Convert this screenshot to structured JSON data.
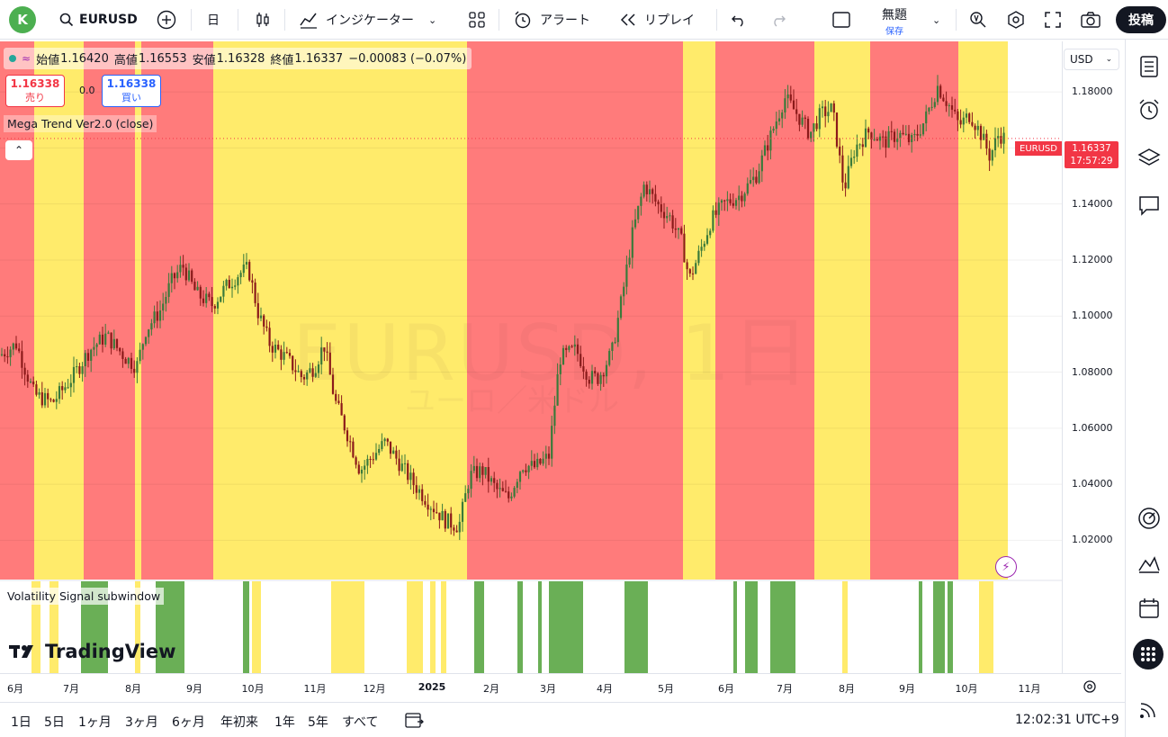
{
  "toolbar": {
    "avatar_letter": "K",
    "symbol": "EURUSD",
    "interval": "日",
    "indicators_label": "インジケーター",
    "alert_label": "アラート",
    "replay_label": "リプレイ",
    "layout_name": "無題",
    "layout_saved": "保存",
    "publish_label": "投稿"
  },
  "legend": {
    "open_label": "始値",
    "open_value": "1.16420",
    "high_label": "高値",
    "high_value": "1.16553",
    "low_label": "安値",
    "low_value": "1.16328",
    "close_label": "終値",
    "close_value": "1.16337",
    "change": "−0.00083 (−0.07%)",
    "sell_price": "1.16338",
    "sell_label": "売り",
    "buy_price": "1.16338",
    "buy_label": "買い",
    "spread": "0.0"
  },
  "indicator_label": "Mega Trend Ver2.0 (close)",
  "subwindow_label": "Volatility Signal subwindow",
  "watermark": {
    "symbol": "EURUSD, 1日",
    "description": "ユーロ／米ドル"
  },
  "tv_logo_text": "TradingView",
  "price_axis": {
    "currency": "USD",
    "ticks": [
      "1.18000",
      "1.16000",
      "1.14000",
      "1.12000",
      "1.10000",
      "1.08000",
      "1.06000",
      "1.04000",
      "1.02000"
    ],
    "last_symbol": "EURUSD",
    "last_price": "1.16337",
    "countdown": "17:57:29"
  },
  "time_axis": [
    "6月",
    "7月",
    "8月",
    "9月",
    "10月",
    "11月",
    "12月",
    "2025",
    "2月",
    "3月",
    "4月",
    "5月",
    "6月",
    "7月",
    "8月",
    "9月",
    "10月",
    "11月"
  ],
  "ranges": [
    "1日",
    "5日",
    "1ヶ月",
    "3ヶ月",
    "6ヶ月",
    "年初来",
    "1年",
    "5年",
    "すべて"
  ],
  "clock": "12:02:31 UTC+9",
  "colors": {
    "red_zone": "#ff7b7b",
    "yellow_zone": "#ffeb6b",
    "green_signal": "#6aaf56",
    "yellow_signal": "#ffeb6b",
    "candle_up": "#3a7a3a",
    "candle_down": "#8b1a1a",
    "alert_red": "#f23645"
  },
  "chart_data": {
    "type": "candlestick",
    "price_range": [
      1.006,
      1.198
    ],
    "price_points": [
      [
        0,
        1.086
      ],
      [
        18,
        1.09
      ],
      [
        38,
        1.072
      ],
      [
        58,
        1.069
      ],
      [
        80,
        1.078
      ],
      [
        100,
        1.088
      ],
      [
        118,
        1.093
      ],
      [
        140,
        1.085
      ],
      [
        152,
        1.082
      ],
      [
        162,
        1.095
      ],
      [
        178,
        1.102
      ],
      [
        190,
        1.112
      ],
      [
        203,
        1.118
      ],
      [
        218,
        1.108
      ],
      [
        236,
        1.104
      ],
      [
        250,
        1.11
      ],
      [
        265,
        1.115
      ],
      [
        276,
        1.117
      ],
      [
        287,
        1.101
      ],
      [
        300,
        1.09
      ],
      [
        318,
        1.085
      ],
      [
        336,
        1.078
      ],
      [
        350,
        1.082
      ],
      [
        360,
        1.09
      ],
      [
        372,
        1.07
      ],
      [
        386,
        1.058
      ],
      [
        400,
        1.045
      ],
      [
        414,
        1.05
      ],
      [
        428,
        1.055
      ],
      [
        445,
        1.047
      ],
      [
        460,
        1.04
      ],
      [
        478,
        1.033
      ],
      [
        495,
        1.027
      ],
      [
        510,
        1.025
      ],
      [
        522,
        1.043
      ],
      [
        536,
        1.045
      ],
      [
        552,
        1.038
      ],
      [
        565,
        1.035
      ],
      [
        580,
        1.047
      ],
      [
        595,
        1.046
      ],
      [
        610,
        1.05
      ],
      [
        622,
        1.085
      ],
      [
        640,
        1.088
      ],
      [
        655,
        1.078
      ],
      [
        665,
        1.078
      ],
      [
        680,
        1.087
      ],
      [
        692,
        1.108
      ],
      [
        702,
        1.128
      ],
      [
        716,
        1.147
      ],
      [
        730,
        1.14
      ],
      [
        745,
        1.135
      ],
      [
        758,
        1.126
      ],
      [
        766,
        1.113
      ],
      [
        778,
        1.123
      ],
      [
        790,
        1.134
      ],
      [
        805,
        1.14
      ],
      [
        822,
        1.143
      ],
      [
        840,
        1.15
      ],
      [
        855,
        1.163
      ],
      [
        872,
        1.178
      ],
      [
        886,
        1.172
      ],
      [
        900,
        1.165
      ],
      [
        912,
        1.172
      ],
      [
        925,
        1.174
      ],
      [
        938,
        1.145
      ],
      [
        950,
        1.16
      ],
      [
        966,
        1.166
      ],
      [
        982,
        1.162
      ],
      [
        998,
        1.165
      ],
      [
        1014,
        1.162
      ],
      [
        1028,
        1.17
      ],
      [
        1042,
        1.182
      ],
      [
        1055,
        1.175
      ],
      [
        1066,
        1.168
      ],
      [
        1078,
        1.172
      ],
      [
        1090,
        1.165
      ],
      [
        1100,
        1.157
      ],
      [
        1110,
        1.165
      ],
      [
        1118,
        1.163
      ]
    ],
    "trend_zones": [
      [
        "red",
        0,
        38
      ],
      [
        "yellow",
        38,
        93
      ],
      [
        "red",
        93,
        150
      ],
      [
        "yellow",
        150,
        157
      ],
      [
        "red",
        157,
        237
      ],
      [
        "yellow",
        237,
        519
      ],
      [
        "red",
        519,
        759
      ],
      [
        "yellow",
        759,
        795
      ],
      [
        "red",
        795,
        905
      ],
      [
        "yellow",
        905,
        967
      ],
      [
        "red",
        967,
        1065
      ],
      [
        "yellow",
        1065,
        1120
      ]
    ],
    "signal_bars": [
      [
        "yellow",
        35,
        45
      ],
      [
        "yellow",
        55,
        65
      ],
      [
        "green",
        90,
        120
      ],
      [
        "yellow",
        150,
        156
      ],
      [
        "green",
        173,
        205
      ],
      [
        "green",
        270,
        277
      ],
      [
        "yellow",
        280,
        290
      ],
      [
        "yellow",
        368,
        405
      ],
      [
        "yellow",
        452,
        470
      ],
      [
        "yellow",
        478,
        484
      ],
      [
        "yellow",
        490,
        496
      ],
      [
        "green",
        527,
        538
      ],
      [
        "green",
        575,
        581
      ],
      [
        "green",
        598,
        602
      ],
      [
        "green",
        610,
        648
      ],
      [
        "green",
        694,
        720
      ],
      [
        "green",
        815,
        819
      ],
      [
        "green",
        828,
        842
      ],
      [
        "green",
        856,
        884
      ],
      [
        "yellow",
        936,
        942
      ],
      [
        "green",
        1021,
        1025
      ],
      [
        "green",
        1037,
        1050
      ],
      [
        "green",
        1053,
        1059
      ],
      [
        "yellow",
        1088,
        1104
      ]
    ]
  }
}
